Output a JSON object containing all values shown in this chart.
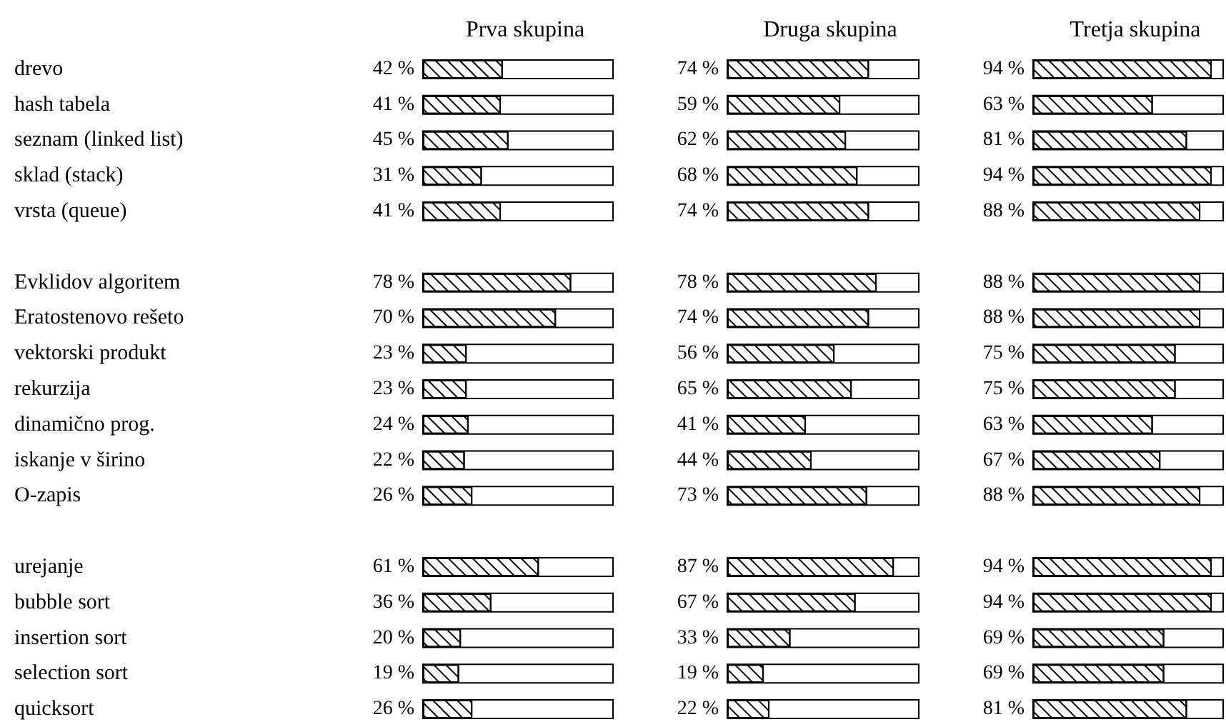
{
  "chart_data": [
    {
      "type": "bar",
      "orientation": "horizontal",
      "title": "Prva skupina",
      "tick_labels": "y",
      "xlim": [
        0,
        100
      ],
      "color": "#000000",
      "categories": [
        "drevo",
        "hash tabela",
        "seznam (linked list)",
        "sklad (stack)",
        "vrsta (queue)",
        null,
        "Evklidov algoritem",
        "Eratostenovo rešeto",
        "vektorski produkt",
        "rekurzija",
        "dinamično prog.",
        "iskanje v širino",
        "O-zapis",
        null,
        "urejanje",
        "bubble sort",
        "insertion sort",
        "selection sort",
        "quicksort"
      ],
      "values": [
        42,
        41,
        45,
        31,
        41,
        null,
        78,
        70,
        23,
        23,
        24,
        22,
        26,
        null,
        61,
        36,
        20,
        19,
        26
      ],
      "value_labels": [
        "42 %",
        "41 %",
        "45 %",
        "31 %",
        "41 %",
        null,
        "78 %",
        "70 %",
        "23 %",
        "23 %",
        "24 %",
        "22 %",
        "26 %",
        null,
        "61 %",
        "36 %",
        "20 %",
        "19 %",
        "26 %"
      ]
    },
    {
      "type": "bar",
      "orientation": "horizontal",
      "title": "Druga skupina",
      "tick_labels": false,
      "xlim": [
        0,
        100
      ],
      "color": "#000000",
      "categories": [
        null,
        null,
        null,
        null,
        null,
        null,
        null,
        null,
        null,
        null,
        null,
        null,
        null,
        null,
        null,
        null,
        null,
        null,
        null
      ],
      "values": [
        74,
        59,
        62,
        68,
        74,
        null,
        78,
        74,
        56,
        65,
        41,
        44,
        73,
        null,
        87,
        67,
        33,
        19,
        22
      ],
      "value_labels": [
        "74 %",
        "59 %",
        "62 %",
        "68 %",
        "74 %",
        null,
        "78 %",
        "74 %",
        "56 %",
        "65 %",
        "41 %",
        "44 %",
        "73 %",
        null,
        "87 %",
        "67 %",
        "33 %",
        "19 %",
        "22 %"
      ]
    },
    {
      "type": "bar",
      "orientation": "horizontal",
      "title": "Tretja skupina",
      "tick_labels": false,
      "xlim": [
        0,
        100
      ],
      "color": "#000000",
      "categories": [
        null,
        null,
        null,
        null,
        null,
        null,
        null,
        null,
        null,
        null,
        null,
        null,
        null,
        null,
        null,
        null,
        null,
        null,
        null
      ],
      "values": [
        94,
        63,
        81,
        94,
        88,
        null,
        88,
        88,
        75,
        75,
        63,
        67,
        88,
        null,
        94,
        94,
        69,
        69,
        81
      ],
      "value_labels": [
        "94 %",
        "63 %",
        "81 %",
        "94 %",
        "88 %",
        null,
        "88 %",
        "88 %",
        "75 %",
        "75 %",
        "63 %",
        "67 %",
        "88 %",
        null,
        "94 %",
        "94 %",
        "69 %",
        "69 %",
        "81 %"
      ]
    }
  ]
}
